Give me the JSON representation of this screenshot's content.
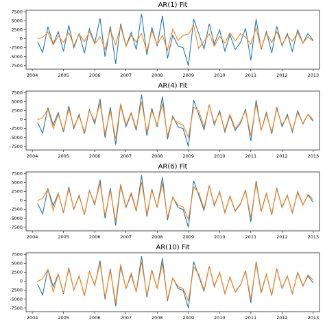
{
  "chart_data": [
    {
      "type": "line",
      "title": "AR(1) Fit",
      "x": [
        2004.17,
        2004.33,
        2004.5,
        2004.67,
        2004.83,
        2005,
        2005.17,
        2005.33,
        2005.5,
        2005.67,
        2005.83,
        2006,
        2006.17,
        2006.33,
        2006.5,
        2006.67,
        2006.83,
        2007,
        2007.17,
        2007.33,
        2007.5,
        2007.67,
        2007.83,
        2008,
        2008.17,
        2008.33,
        2008.5,
        2008.67,
        2008.83,
        2009,
        2009.17,
        2009.33,
        2009.5,
        2009.67,
        2009.83,
        2010,
        2010.17,
        2010.33,
        2010.5,
        2010.67,
        2010.83,
        2011,
        2011.17,
        2011.33,
        2011.5,
        2011.67,
        2011.83,
        2012,
        2012.17,
        2012.33,
        2012.5,
        2012.67,
        2012.83,
        2013
      ],
      "xlim": [
        2003.8,
        2013.2
      ],
      "xticks": [
        2004,
        2005,
        2006,
        2007,
        2008,
        2009,
        2010,
        2011,
        2012,
        2013
      ],
      "ylim": [
        -8500,
        8000
      ],
      "yticks": [
        -7500,
        -5000,
        -2500,
        0,
        2500,
        5000,
        7500
      ],
      "series": [
        {
          "color": "#1f77b4",
          "values": [
            -800,
            -3800,
            3400,
            -1500,
            2000,
            -3500,
            3800,
            -2500,
            1500,
            -4000,
            2800,
            -1200,
            5800,
            -5000,
            3500,
            -7000,
            4200,
            -2000,
            1800,
            -3000,
            7000,
            -4500,
            3200,
            -2000,
            6500,
            -5500,
            1000,
            -2000,
            -2500,
            -7500,
            5500,
            1500,
            -2800,
            4200,
            -1500,
            2500,
            -3500,
            1200,
            -3000,
            -1000,
            3000,
            -6000,
            5500,
            -3000,
            2000,
            -4000,
            3500,
            -2000,
            1500,
            -3500,
            2500,
            -1200,
            1500,
            -500
          ]
        },
        {
          "color": "#ff7f0e",
          "values": [
            0,
            400,
            1900,
            -1700,
            800,
            -1000,
            1800,
            -1900,
            1300,
            -800,
            2000,
            -1400,
            600,
            -2900,
            2500,
            -1700,
            3500,
            -2100,
            1000,
            -900,
            1500,
            -3500,
            2300,
            -1600,
            1000,
            -3200,
            2700,
            -500,
            1000,
            1300,
            3700,
            -2700,
            -700,
            1400,
            -2100,
            700,
            -1200,
            1700,
            -600,
            1500,
            500,
            -1500,
            3000,
            -2700,
            1500,
            -1000,
            2000,
            -1700,
            1000,
            -700,
            1700,
            -1200,
            600,
            -700
          ]
        }
      ]
    },
    {
      "type": "line",
      "title": "AR(4) Fit",
      "x": [
        2004.17,
        2004.33,
        2004.5,
        2004.67,
        2004.83,
        2005,
        2005.17,
        2005.33,
        2005.5,
        2005.67,
        2005.83,
        2006,
        2006.17,
        2006.33,
        2006.5,
        2006.67,
        2006.83,
        2007,
        2007.17,
        2007.33,
        2007.5,
        2007.67,
        2007.83,
        2008,
        2008.17,
        2008.33,
        2008.5,
        2008.67,
        2008.83,
        2009,
        2009.17,
        2009.33,
        2009.5,
        2009.67,
        2009.83,
        2010,
        2010.17,
        2010.33,
        2010.5,
        2010.67,
        2010.83,
        2011,
        2011.17,
        2011.33,
        2011.5,
        2011.67,
        2011.83,
        2012,
        2012.17,
        2012.33,
        2012.5,
        2012.67,
        2012.83,
        2013
      ],
      "xlim": [
        2003.8,
        2013.2
      ],
      "xticks": [
        2004,
        2005,
        2006,
        2007,
        2008,
        2009,
        2010,
        2011,
        2012,
        2013
      ],
      "ylim": [
        -8500,
        8000
      ],
      "yticks": [
        -7500,
        -5000,
        -2500,
        0,
        2500,
        5000,
        7500
      ],
      "series": [
        {
          "color": "#1f77b4",
          "values": [
            -800,
            -3800,
            3400,
            -1500,
            2000,
            -3500,
            3800,
            -2500,
            1500,
            -4000,
            2800,
            -1200,
            5800,
            -5000,
            3500,
            -7000,
            4200,
            -2000,
            1800,
            -3000,
            7000,
            -4500,
            3200,
            -2000,
            6500,
            -5500,
            1000,
            -2000,
            -2500,
            -7500,
            5500,
            1500,
            -2800,
            4200,
            -1500,
            2500,
            -3500,
            1200,
            -3000,
            -1000,
            3000,
            -6000,
            5500,
            -3000,
            2000,
            -4000,
            3500,
            -2000,
            1500,
            -3500,
            2500,
            -1200,
            1500,
            -500
          ]
        },
        {
          "color": "#ff7f0e",
          "values": [
            0,
            500,
            3000,
            -2500,
            1500,
            -3000,
            3000,
            -2000,
            1000,
            -3500,
            2500,
            -500,
            4500,
            -4000,
            2500,
            -5500,
            4500,
            -1500,
            2000,
            -2500,
            5000,
            -3500,
            2500,
            -1500,
            4500,
            -4500,
            500,
            -1000,
            -1500,
            -5000,
            3500,
            2500,
            -2000,
            4000,
            -1000,
            2000,
            -3000,
            1500,
            -2500,
            -500,
            2500,
            -4500,
            4500,
            -3000,
            1500,
            -3500,
            3000,
            -1500,
            1000,
            -3000,
            2000,
            -1000,
            1500,
            0
          ]
        }
      ]
    },
    {
      "type": "line",
      "title": "AR(6) Fit",
      "x": [
        2004.17,
        2004.33,
        2004.5,
        2004.67,
        2004.83,
        2005,
        2005.17,
        2005.33,
        2005.5,
        2005.67,
        2005.83,
        2006,
        2006.17,
        2006.33,
        2006.5,
        2006.67,
        2006.83,
        2007,
        2007.17,
        2007.33,
        2007.5,
        2007.67,
        2007.83,
        2008,
        2008.17,
        2008.33,
        2008.5,
        2008.67,
        2008.83,
        2009,
        2009.17,
        2009.33,
        2009.5,
        2009.67,
        2009.83,
        2010,
        2010.17,
        2010.33,
        2010.5,
        2010.67,
        2010.83,
        2011,
        2011.17,
        2011.33,
        2011.5,
        2011.67,
        2011.83,
        2012,
        2012.17,
        2012.33,
        2012.5,
        2012.67,
        2012.83,
        2013
      ],
      "xlim": [
        2003.8,
        2013.2
      ],
      "xticks": [
        2004,
        2005,
        2006,
        2007,
        2008,
        2009,
        2010,
        2011,
        2012,
        2013
      ],
      "ylim": [
        -8500,
        8000
      ],
      "yticks": [
        -7500,
        -5000,
        -2500,
        0,
        2500,
        5000,
        7500
      ],
      "series": [
        {
          "color": "#1f77b4",
          "values": [
            -800,
            -3800,
            3400,
            -1500,
            2000,
            -3500,
            3800,
            -2500,
            1500,
            -4000,
            2800,
            -1200,
            5800,
            -5000,
            3500,
            -7000,
            4200,
            -2000,
            1800,
            -3000,
            7000,
            -4500,
            3200,
            -2000,
            6500,
            -5500,
            1000,
            -2000,
            -2500,
            -7500,
            5500,
            1500,
            -2800,
            4200,
            -1500,
            2500,
            -3500,
            1200,
            -3000,
            -1000,
            3000,
            -6000,
            5500,
            -3000,
            2000,
            -4000,
            3500,
            -2000,
            1500,
            -3500,
            2500,
            -1200,
            1500,
            -500
          ]
        },
        {
          "color": "#ff7f0e",
          "values": [
            0,
            600,
            3200,
            -2800,
            1800,
            -3200,
            3300,
            -2300,
            1200,
            -3800,
            2600,
            -800,
            4800,
            -4200,
            2800,
            -5800,
            4600,
            -1800,
            2200,
            -2800,
            5200,
            -3800,
            2800,
            -1800,
            4800,
            -4800,
            800,
            -1300,
            -1800,
            -5300,
            3800,
            2200,
            -2300,
            4200,
            -1200,
            2300,
            -3300,
            1300,
            -2800,
            -800,
            2700,
            -4800,
            4800,
            -3200,
            1800,
            -3700,
            3200,
            -1800,
            1300,
            -3200,
            2200,
            -1300,
            1700,
            200
          ]
        }
      ]
    },
    {
      "type": "line",
      "title": "AR(10) Fit",
      "x": [
        2004.17,
        2004.33,
        2004.5,
        2004.67,
        2004.83,
        2005,
        2005.17,
        2005.33,
        2005.5,
        2005.67,
        2005.83,
        2006,
        2006.17,
        2006.33,
        2006.5,
        2006.67,
        2006.83,
        2007,
        2007.17,
        2007.33,
        2007.5,
        2007.67,
        2007.83,
        2008,
        2008.17,
        2008.33,
        2008.5,
        2008.67,
        2008.83,
        2009,
        2009.17,
        2009.33,
        2009.5,
        2009.67,
        2009.83,
        2010,
        2010.17,
        2010.33,
        2010.5,
        2010.67,
        2010.83,
        2011,
        2011.17,
        2011.33,
        2011.5,
        2011.67,
        2011.83,
        2012,
        2012.17,
        2012.33,
        2012.5,
        2012.67,
        2012.83,
        2013
      ],
      "xlim": [
        2003.8,
        2013.2
      ],
      "xticks": [
        2004,
        2005,
        2006,
        2007,
        2008,
        2009,
        2010,
        2011,
        2012,
        2013
      ],
      "ylim": [
        -8500,
        8000
      ],
      "yticks": [
        -7500,
        -5000,
        -2500,
        0,
        2500,
        5000,
        7500
      ],
      "series": [
        {
          "color": "#1f77b4",
          "values": [
            -800,
            -3800,
            3400,
            -1500,
            2000,
            -3500,
            3800,
            -2500,
            1500,
            -4000,
            2800,
            -1200,
            5800,
            -5000,
            3500,
            -7000,
            4200,
            -2000,
            1800,
            -3000,
            7000,
            -4500,
            3200,
            -2000,
            6500,
            -5500,
            1000,
            -2000,
            -2500,
            -7500,
            5500,
            1500,
            -2800,
            4200,
            -1500,
            2500,
            -3500,
            1200,
            -3000,
            -1000,
            3000,
            -6000,
            5500,
            -3000,
            2000,
            -4000,
            3500,
            -2000,
            1500,
            -3500,
            2500,
            -1200,
            1500,
            -500
          ]
        },
        {
          "color": "#ff7f0e",
          "values": [
            0,
            700,
            3300,
            -3000,
            2000,
            -3300,
            3500,
            -2400,
            1400,
            -3900,
            2700,
            -1000,
            5000,
            -4500,
            3000,
            -6000,
            4800,
            -2000,
            2300,
            -3000,
            5500,
            -4000,
            3000,
            -1900,
            5000,
            -5000,
            900,
            -1500,
            -2000,
            -5500,
            4000,
            2000,
            -2500,
            4300,
            -1300,
            2400,
            -3400,
            1200,
            -2900,
            -900,
            2800,
            -5000,
            5000,
            -3300,
            1900,
            -3800,
            3300,
            -1900,
            1400,
            -3300,
            2300,
            -1400,
            1800,
            300
          ]
        }
      ]
    }
  ]
}
